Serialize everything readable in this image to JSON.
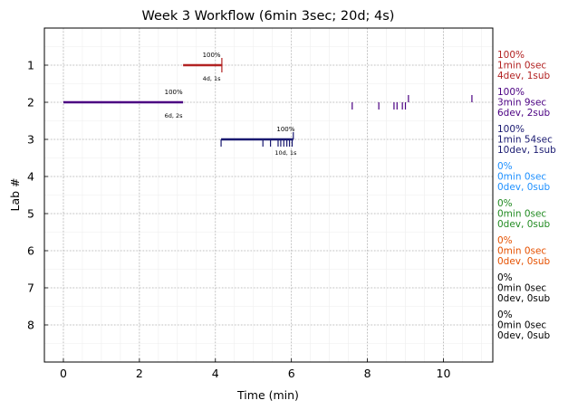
{
  "chart_data": {
    "type": "timeline",
    "title": "Week 3 Workflow (6min 3sec; 20d; 4s)",
    "xlabel": "Time (min)",
    "ylabel": "Lab #",
    "xlim": [
      -0.5,
      11.3
    ],
    "ylim": [
      9,
      0
    ],
    "xticks": [
      0,
      2,
      4,
      6,
      8,
      10
    ],
    "yticks": [
      1,
      2,
      3,
      4,
      5,
      6,
      7,
      8
    ],
    "grid": true,
    "colors": {
      "lab1": "#b22222",
      "lab2": "#4b0082",
      "lab3": "#191970",
      "lab4": "#1e90ff",
      "lab5": "#228b22",
      "lab6": "#e65100",
      "lab7": "#000000",
      "lab8": "#000000"
    },
    "segments": [
      {
        "lab": 1,
        "start": 3.15,
        "end": 4.17,
        "color": "#b22222",
        "pct_label": "100%",
        "pct_x": 3.9,
        "sub_label": "4d, 1s",
        "sub_x": 3.9
      },
      {
        "lab": 2,
        "start": 0.0,
        "end": 3.15,
        "color": "#4b0082",
        "pct_label": "100%",
        "pct_x": 2.9,
        "sub_label": "6d, 2s",
        "sub_x": 2.9
      },
      {
        "lab": 3,
        "start": 4.15,
        "end": 6.05,
        "color": "#191970",
        "pct_label": "100%",
        "pct_x": 5.85,
        "sub_label": "10d, 1s",
        "sub_x": 5.85
      }
    ],
    "events": [
      {
        "lab": 1,
        "x": 4.17,
        "kind": "down",
        "color": "#b22222"
      },
      {
        "lab": 1,
        "x": 4.17,
        "kind": "up",
        "color": "#b22222"
      },
      {
        "lab": 2,
        "x": 7.6,
        "kind": "down",
        "color": "#4b0082"
      },
      {
        "lab": 2,
        "x": 8.3,
        "kind": "down",
        "color": "#4b0082"
      },
      {
        "lab": 2,
        "x": 8.7,
        "kind": "down",
        "color": "#4b0082"
      },
      {
        "lab": 2,
        "x": 8.78,
        "kind": "down",
        "color": "#4b0082"
      },
      {
        "lab": 2,
        "x": 8.92,
        "kind": "down",
        "color": "#4b0082"
      },
      {
        "lab": 2,
        "x": 9.0,
        "kind": "down",
        "color": "#4b0082"
      },
      {
        "lab": 2,
        "x": 9.08,
        "kind": "up",
        "color": "#4b0082"
      },
      {
        "lab": 2,
        "x": 10.75,
        "kind": "up",
        "color": "#4b0082"
      },
      {
        "lab": 3,
        "x": 4.15,
        "kind": "down",
        "color": "#191970"
      },
      {
        "lab": 3,
        "x": 5.25,
        "kind": "down",
        "color": "#191970"
      },
      {
        "lab": 3,
        "x": 5.45,
        "kind": "down",
        "color": "#191970"
      },
      {
        "lab": 3,
        "x": 5.65,
        "kind": "down",
        "color": "#191970"
      },
      {
        "lab": 3,
        "x": 5.72,
        "kind": "down",
        "color": "#191970"
      },
      {
        "lab": 3,
        "x": 5.8,
        "kind": "down",
        "color": "#191970"
      },
      {
        "lab": 3,
        "x": 5.88,
        "kind": "down",
        "color": "#191970"
      },
      {
        "lab": 3,
        "x": 5.95,
        "kind": "down",
        "color": "#191970"
      },
      {
        "lab": 3,
        "x": 6.02,
        "kind": "down",
        "color": "#191970"
      },
      {
        "lab": 3,
        "x": 6.05,
        "kind": "up",
        "color": "#191970"
      }
    ],
    "side_labels": [
      {
        "lab": 1,
        "lines": [
          "100%",
          "1min 0sec",
          "4dev, 1sub"
        ],
        "color": "#b22222"
      },
      {
        "lab": 2,
        "lines": [
          "100%",
          "3min 9sec",
          "6dev, 2sub"
        ],
        "color": "#4b0082"
      },
      {
        "lab": 3,
        "lines": [
          "100%",
          "1min 54sec",
          "10dev, 1sub"
        ],
        "color": "#191970"
      },
      {
        "lab": 4,
        "lines": [
          "0%",
          "0min 0sec",
          "0dev, 0sub"
        ],
        "color": "#1e90ff"
      },
      {
        "lab": 5,
        "lines": [
          "0%",
          "0min 0sec",
          "0dev, 0sub"
        ],
        "color": "#228b22"
      },
      {
        "lab": 6,
        "lines": [
          "0%",
          "0min 0sec",
          "0dev, 0sub"
        ],
        "color": "#e65100"
      },
      {
        "lab": 7,
        "lines": [
          "0%",
          "0min 0sec",
          "0dev, 0sub"
        ],
        "color": "#000000"
      },
      {
        "lab": 8,
        "lines": [
          "0%",
          "0min 0sec",
          "0dev, 0sub"
        ],
        "color": "#000000"
      }
    ]
  }
}
